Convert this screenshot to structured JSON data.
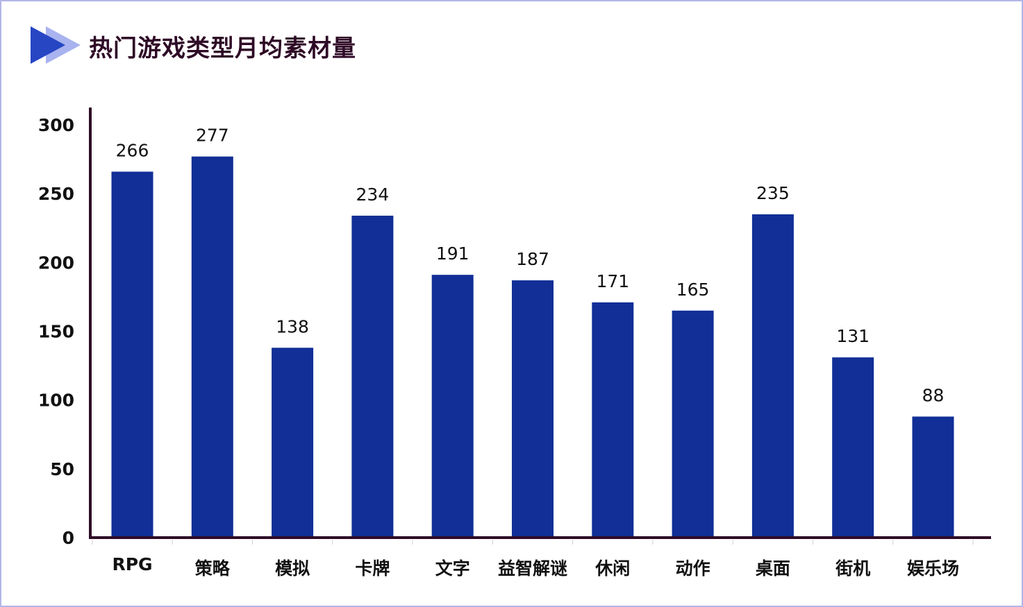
{
  "chart_data": {
    "type": "bar",
    "title": "热门游戏类型月均素材量",
    "xlabel": "",
    "ylabel": "",
    "categories": [
      "RPG",
      "策略",
      "模拟",
      "卡牌",
      "文字",
      "益智解谜",
      "休闲",
      "动作",
      "桌面",
      "街机",
      "娱乐场"
    ],
    "values": [
      266,
      277,
      138,
      234,
      191,
      187,
      171,
      165,
      235,
      131,
      88
    ],
    "yticks": [
      0,
      50,
      100,
      150,
      200,
      250,
      300
    ],
    "ylim": [
      0,
      300
    ],
    "grid": false,
    "legend": "none",
    "data_labels": true
  },
  "colors": {
    "bar": "#112f96",
    "axis": "#2e0a26",
    "title": "#2e0a26",
    "title_icon_dark": "#2646c4",
    "title_icon_light": "#a8b3ef",
    "border": "#b3b6e8"
  },
  "icons": {
    "title": "double-triangle-play-icon"
  }
}
